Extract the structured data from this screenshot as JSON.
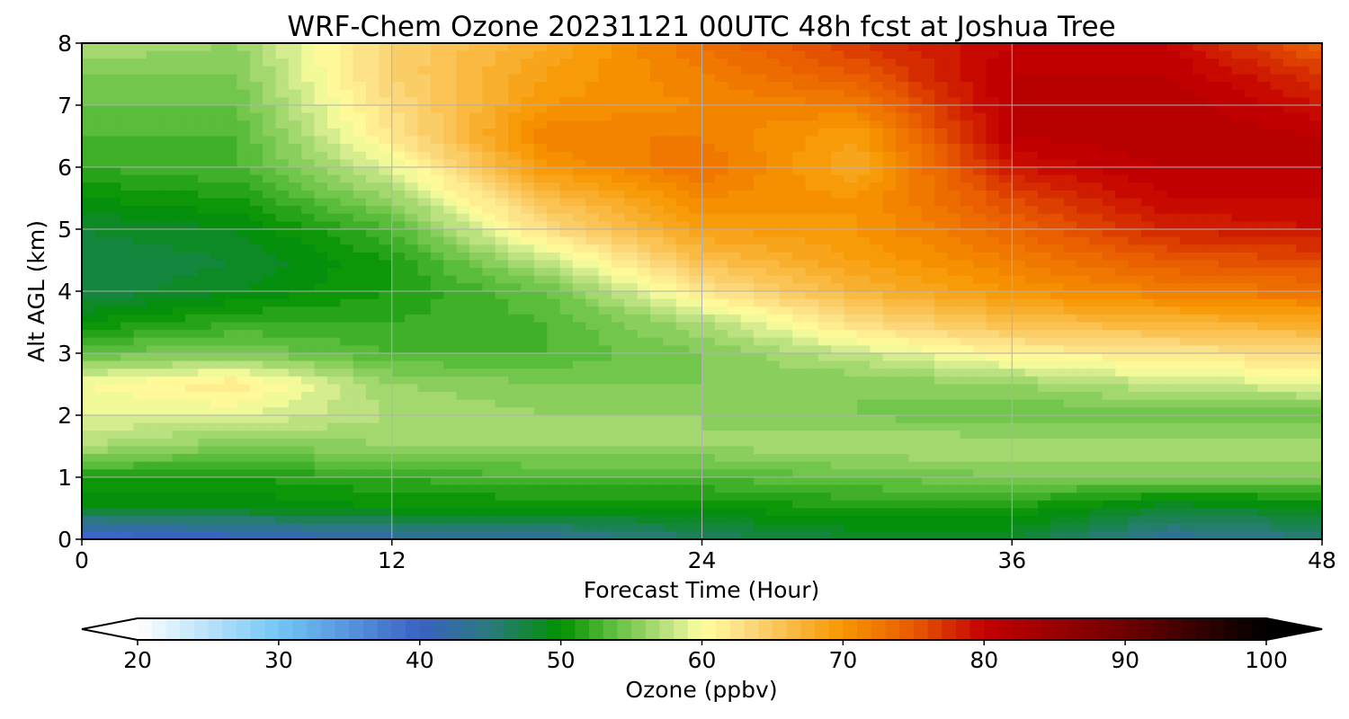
{
  "chart_data": {
    "type": "heatmap",
    "title": "WRF-Chem Ozone  20231121 00UTC 48h fcst at Joshua Tree",
    "xlabel": "Forecast Time (Hour)",
    "ylabel": "Alt AGL (km)",
    "xlim": [
      0,
      48
    ],
    "ylim": [
      0,
      8
    ],
    "xticks": [
      0,
      12,
      24,
      36,
      48
    ],
    "yticks": [
      0,
      1,
      2,
      3,
      4,
      5,
      6,
      7,
      8
    ],
    "grid": true,
    "x": [
      0,
      6,
      12,
      18,
      24,
      30,
      36,
      42,
      48
    ],
    "y": [
      0,
      0.5,
      1,
      1.5,
      2,
      2.5,
      3,
      3.5,
      4,
      4.5,
      5,
      5.5,
      6,
      6.5,
      7,
      7.5,
      8
    ],
    "z": [
      [
        38,
        40,
        42,
        43,
        46,
        48,
        48,
        43,
        45
      ],
      [
        49,
        49,
        50,
        50,
        50,
        51,
        51,
        48,
        49
      ],
      [
        51,
        51,
        52,
        53,
        53,
        54,
        55,
        55,
        55
      ],
      [
        57,
        55,
        56,
        56,
        56,
        57,
        57,
        57,
        57
      ],
      [
        59,
        59,
        57,
        56,
        56,
        55,
        54,
        54,
        54
      ],
      [
        60,
        62,
        56,
        55,
        55,
        55,
        56,
        58,
        59
      ],
      [
        54,
        55,
        53,
        53,
        55,
        58,
        61,
        62,
        63
      ],
      [
        50,
        52,
        52,
        53,
        57,
        63,
        66,
        67,
        68
      ],
      [
        47,
        49,
        51,
        54,
        62,
        67,
        70,
        72,
        73
      ],
      [
        47,
        48,
        51,
        58,
        66,
        69,
        72,
        75,
        76
      ],
      [
        48,
        49,
        53,
        63,
        69,
        70,
        74,
        78,
        79
      ],
      [
        50,
        51,
        56,
        66,
        71,
        70,
        76,
        80,
        80
      ],
      [
        52,
        53,
        59,
        70,
        73,
        68,
        79,
        81,
        81
      ],
      [
        53,
        53,
        62,
        72,
        72,
        69,
        81,
        82,
        81
      ],
      [
        54,
        54,
        63,
        70,
        71,
        72,
        81,
        82,
        79
      ],
      [
        55,
        55,
        64,
        69,
        72,
        75,
        81,
        81,
        77
      ],
      [
        57,
        56,
        64,
        68,
        73,
        77,
        80,
        80,
        74
      ]
    ],
    "colorbar": {
      "label": "Ozone  (ppbv)",
      "min": 20,
      "max": 100,
      "ticks": [
        20,
        30,
        40,
        50,
        60,
        70,
        80,
        90,
        100
      ],
      "extend": "both",
      "colors": [
        {
          "v": 20,
          "c": "#ffffff"
        },
        {
          "v": 30,
          "c": "#73c6f5"
        },
        {
          "v": 40,
          "c": "#3a62c4"
        },
        {
          "v": 45,
          "c": "#2a7a7c"
        },
        {
          "v": 50,
          "c": "#009100"
        },
        {
          "v": 54,
          "c": "#66c243"
        },
        {
          "v": 58,
          "c": "#c7e58a"
        },
        {
          "v": 60,
          "c": "#ffff9e"
        },
        {
          "v": 63,
          "c": "#fcdc82"
        },
        {
          "v": 70,
          "c": "#f79600"
        },
        {
          "v": 75,
          "c": "#e85a00"
        },
        {
          "v": 80,
          "c": "#c40000"
        },
        {
          "v": 90,
          "c": "#6e0000"
        },
        {
          "v": 100,
          "c": "#000000"
        }
      ]
    }
  }
}
